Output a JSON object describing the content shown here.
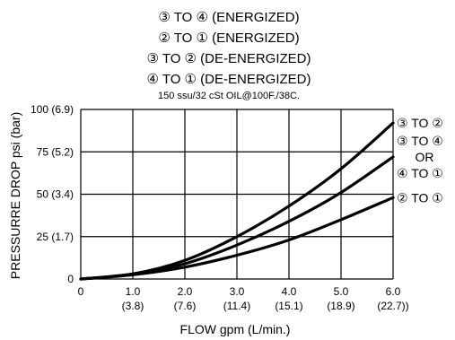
{
  "chart_data": {
    "type": "line",
    "title_lines": [
      "③ TO ④  (ENERGIZED)",
      "② TO ① (ENERGIZED)",
      "③ TO ② (DE-ENERGIZED)",
      "④ TO ① (DE-ENERGIZED)"
    ],
    "subtitle": "150 ssu/32 cSt OIL@100F./38C.",
    "xlabel": "FLOW  gpm  (L/min.)",
    "ylabel": "PRESSURRE DROP psi (bar)",
    "xlim": [
      0,
      6
    ],
    "ylim": [
      0,
      100
    ],
    "grid": true,
    "x_ticks": [
      {
        "value": 0,
        "label": "0",
        "sub": ""
      },
      {
        "value": 1,
        "label": "1.0",
        "sub": "(3.8)"
      },
      {
        "value": 2,
        "label": "2.0",
        "sub": "(7.6)"
      },
      {
        "value": 3,
        "label": "3.0",
        "sub": "(11.4)"
      },
      {
        "value": 4,
        "label": "4.0",
        "sub": "(15.1)"
      },
      {
        "value": 5,
        "label": "5.0",
        "sub": "(18.9)"
      },
      {
        "value": 6,
        "label": "6.0",
        "sub": "(22.7))"
      }
    ],
    "y_ticks": [
      {
        "value": 0,
        "label": "0"
      },
      {
        "value": 25,
        "label": "25 (1.7)"
      },
      {
        "value": 50,
        "label": "50 (3.4)"
      },
      {
        "value": 75,
        "label": "75 (5.2)"
      },
      {
        "value": 100,
        "label": "100 (6.9)"
      }
    ],
    "series": [
      {
        "name": "③ TO ②",
        "x": [
          0,
          1,
          2,
          3,
          4,
          5,
          6
        ],
        "y": [
          0,
          3,
          11,
          25,
          43,
          65,
          92
        ]
      },
      {
        "name": "③ TO ④ OR ④ TO ①",
        "x": [
          0,
          1,
          2,
          3,
          4,
          5,
          6
        ],
        "y": [
          0,
          3,
          9,
          20,
          34,
          51,
          72
        ]
      },
      {
        "name": "② TO ①",
        "x": [
          0,
          1,
          2,
          3,
          4,
          5,
          6
        ],
        "y": [
          0,
          2.5,
          7,
          14,
          23,
          35,
          48
        ]
      }
    ],
    "series_labels": [
      {
        "series": 0,
        "lines": [
          "③ TO ②"
        ]
      },
      {
        "series": 1,
        "lines": [
          "③ TO ④",
          "OR",
          "④ TO ①"
        ]
      },
      {
        "series": 2,
        "lines": [
          "② TO ①"
        ]
      }
    ]
  }
}
